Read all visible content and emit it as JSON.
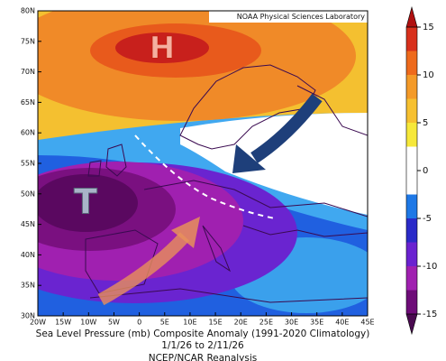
{
  "header": {
    "credit": "NOAA Physical Sciences Laboratory"
  },
  "map": {
    "labels": {
      "high": "H",
      "low": "T"
    },
    "lat_labels": [
      "80N",
      "75N",
      "70N",
      "65N",
      "60N",
      "55N",
      "50N",
      "45N",
      "40N",
      "35N",
      "30N"
    ],
    "lon_labels": [
      "20W",
      "15W",
      "10W",
      "5W",
      "0",
      "5E",
      "10E",
      "15E",
      "20E",
      "25E",
      "30E",
      "35E",
      "40E",
      "45E"
    ]
  },
  "colorbar": {
    "ticks": [
      15,
      10,
      5,
      0,
      -5,
      -10,
      -15
    ],
    "lim": [
      -15,
      15
    ],
    "colors": [
      "#6e0c78",
      "#a020b0",
      "#6a22d0",
      "#2a2ac8",
      "#1e78e6",
      "#ffffff",
      "#ffffff",
      "#f6e83a",
      "#f6c030",
      "#f49a28",
      "#ee6a1c",
      "#d8301c"
    ]
  },
  "caption": {
    "title": "Sea Level Pressure (mb) Composite Anomaly (1991-2020 Climatology)",
    "dates": "1/1/26  to 2/11/26",
    "source": "NCEP/NCAR Reanalysis"
  }
}
